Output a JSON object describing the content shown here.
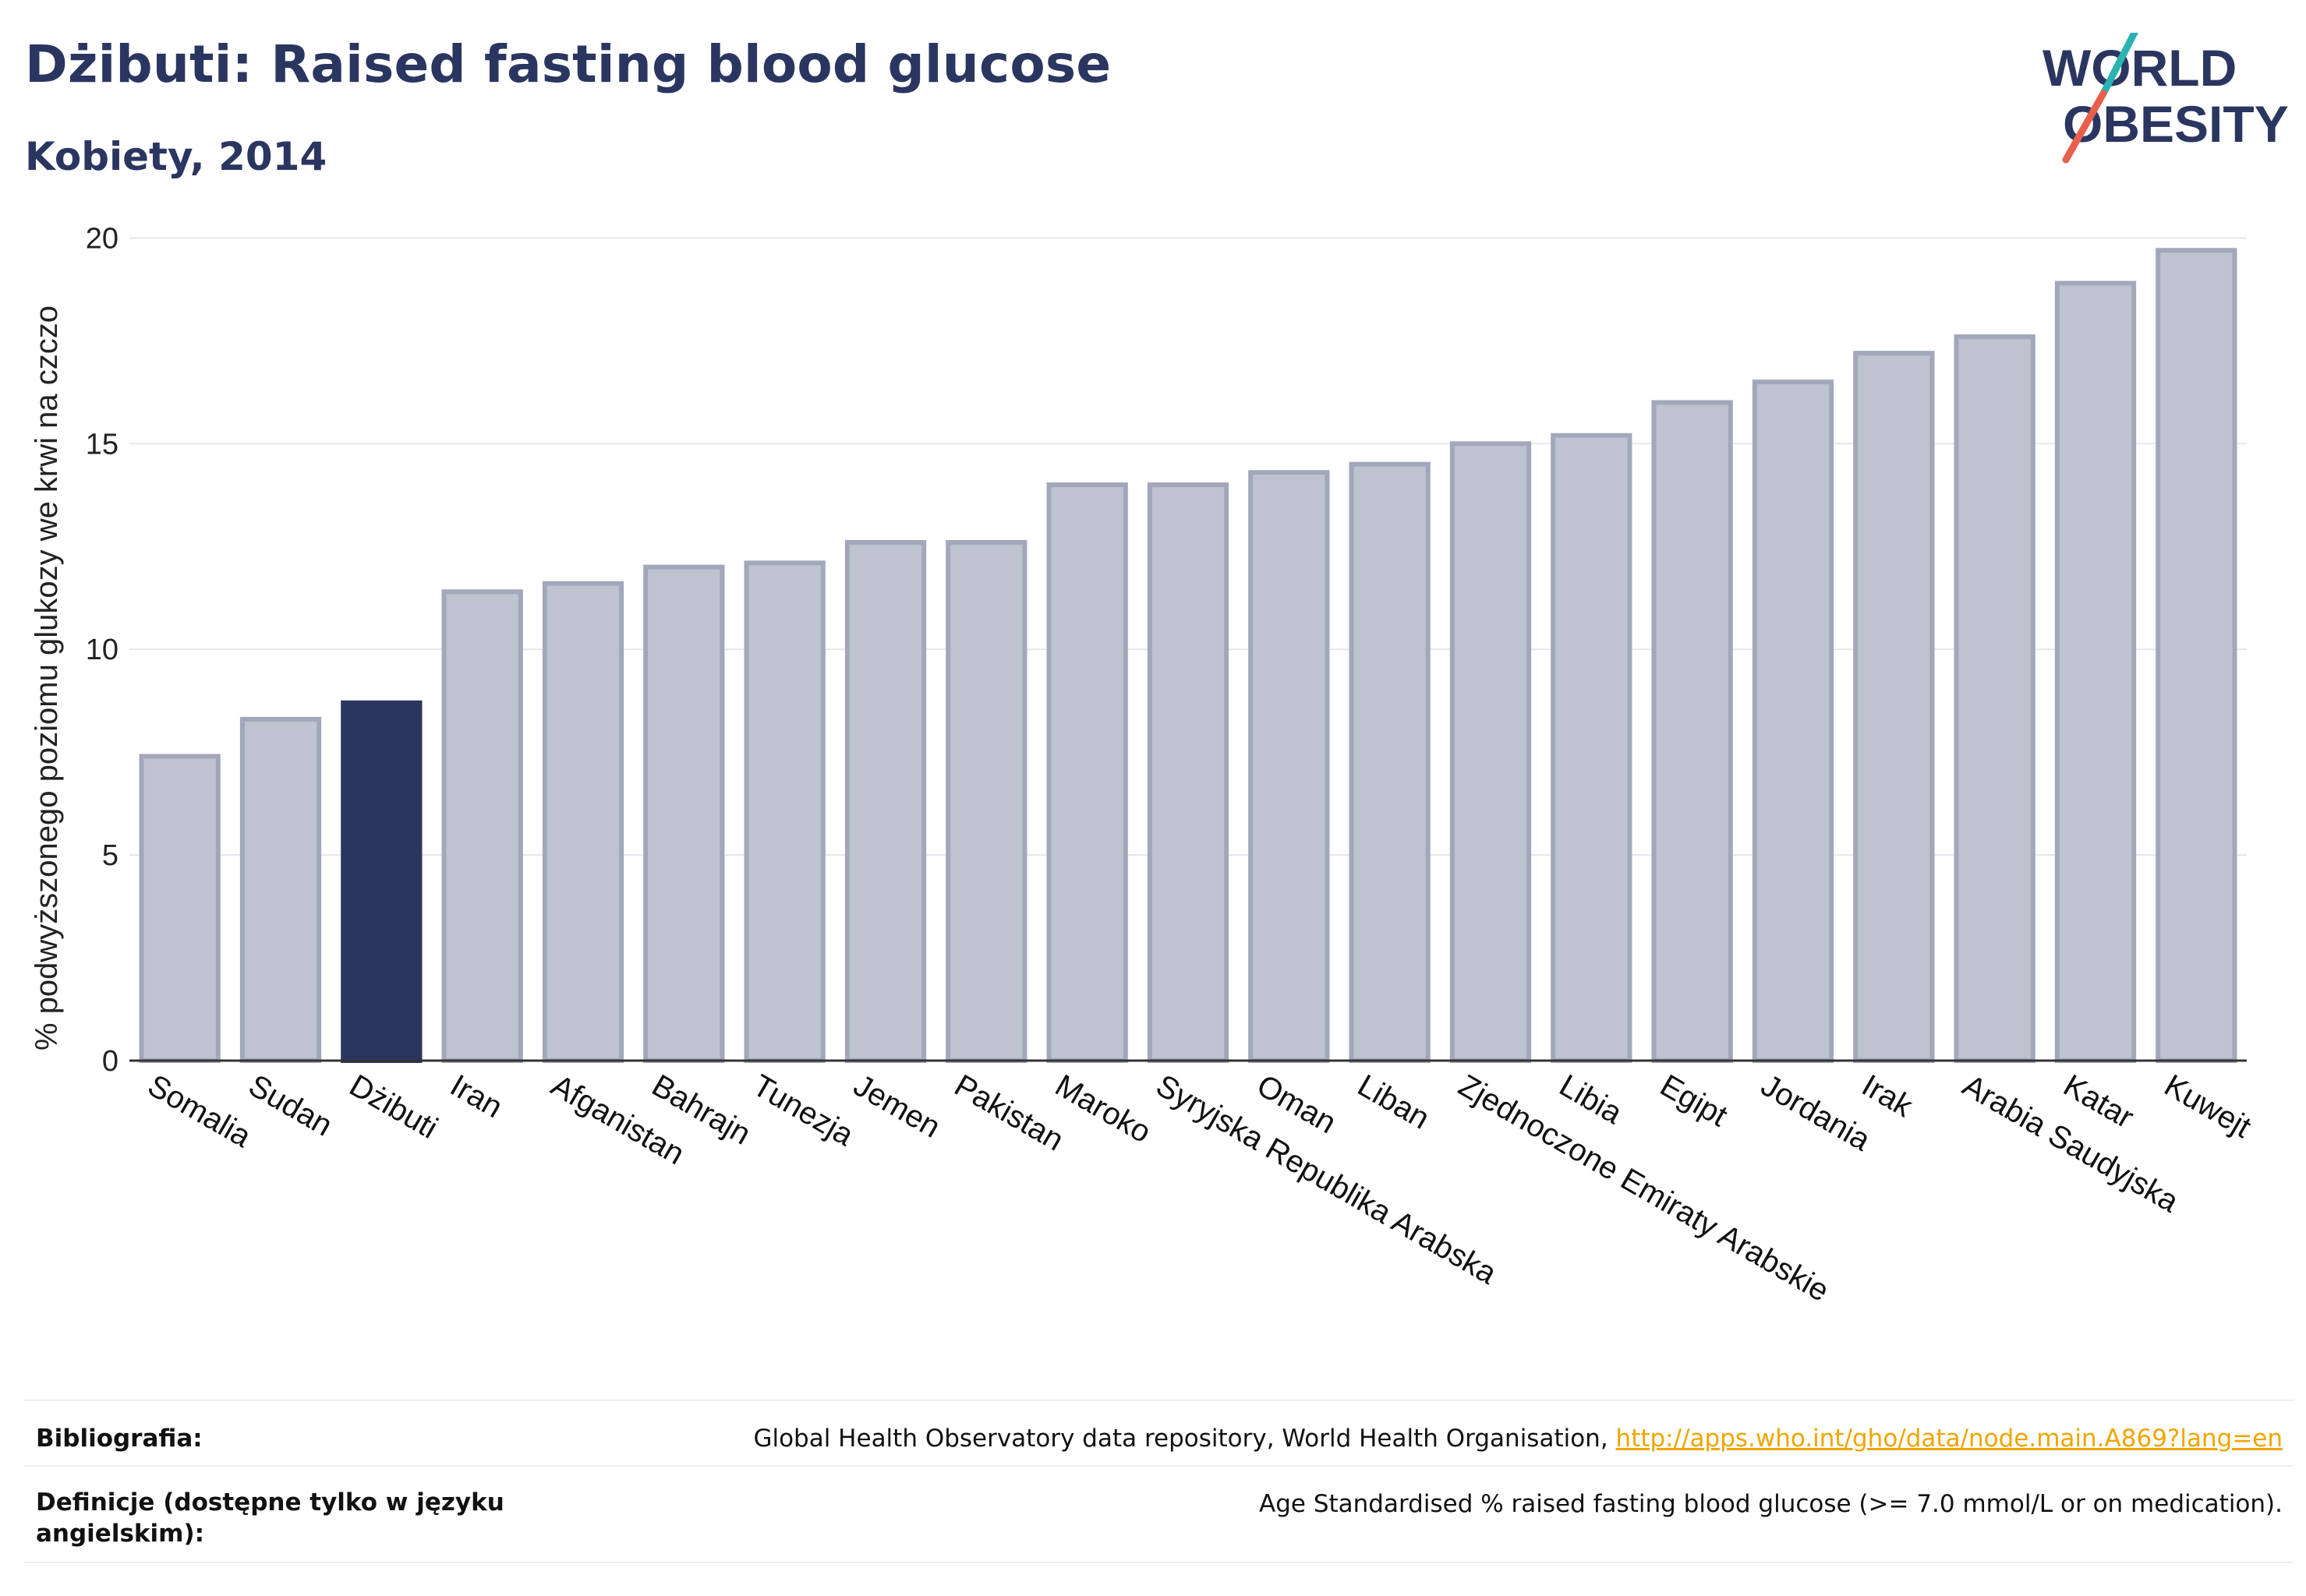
{
  "header": {
    "title": "Dżibuti: Raised fasting blood glucose",
    "subtitle": "Kobiety, 2014"
  },
  "logo": {
    "line1": "WORLD",
    "line2": "OBESITY",
    "colors": {
      "text": "#2b3660",
      "slash_top": "#2bb3b1",
      "slash_bottom": "#e8604c"
    }
  },
  "colors": {
    "bar_fill": "#bfc2cf",
    "bar_stroke": "#a2a7bb",
    "highlight": "#2b3660",
    "grid": "#e6e7ec",
    "axis": "#333333"
  },
  "chart_data": {
    "type": "bar",
    "ylabel": "% podwyższonego poziomu glukozy we krwi na czczo",
    "ylim": [
      0,
      20.5
    ],
    "yticks": [
      0,
      5,
      10,
      15,
      20
    ],
    "grid": true,
    "highlight_category": "Dżibuti",
    "categories": [
      "Somalia",
      "Sudan",
      "Dżibuti",
      "Iran",
      "Afganistan",
      "Bahrajn",
      "Tunezja",
      "Jemen",
      "Pakistan",
      "Maroko",
      "Syryjska Republika Arabska",
      "Oman",
      "Liban",
      "Zjednoczone Emiraty Arabskie",
      "Libia",
      "Egipt",
      "Jordania",
      "Irak",
      "Arabia Saudyjska",
      "Katar",
      "Kuwejt"
    ],
    "values": [
      7.4,
      8.3,
      8.7,
      11.4,
      11.6,
      12.0,
      12.1,
      12.6,
      12.6,
      14.0,
      14.0,
      14.3,
      14.5,
      15.0,
      15.2,
      16.0,
      16.5,
      17.2,
      17.6,
      18.9,
      19.7
    ]
  },
  "footer": {
    "bibliography_label": "Bibliografia:",
    "bibliography_text": "Global Health Observatory data repository, World Health Organisation, ",
    "bibliography_link": "http://apps.who.int/gho/data/node.main.A869?lang=en",
    "definition_label": "Definicje (dostępne tylko w języku angielskim):",
    "definition_text": "Age Standardised % raised fasting blood glucose (>= 7.0 mmol/L or on medication)."
  }
}
